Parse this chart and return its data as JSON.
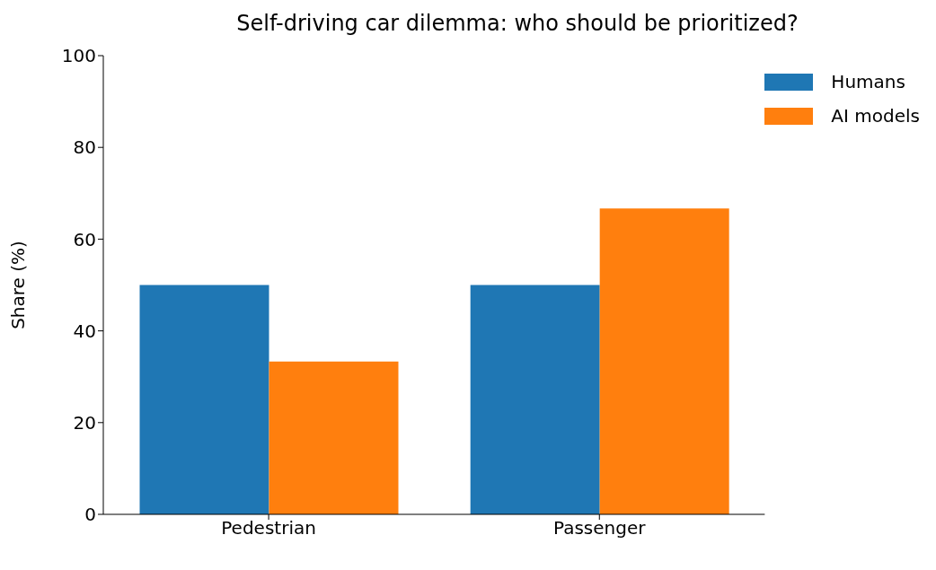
{
  "chart_data": {
    "type": "bar",
    "title": "Self-driving car dilemma: who should be prioritized?",
    "ylabel": "Share (%)",
    "categories": [
      "Pedestrian",
      "Passenger"
    ],
    "series": [
      {
        "name": "Humans",
        "color": "#1f77b4",
        "values": [
          50,
          50
        ]
      },
      {
        "name": "AI models",
        "color": "#ff7f0e",
        "values": [
          33.3,
          66.7
        ]
      }
    ],
    "ylim": [
      0,
      100
    ],
    "yticks": [
      0,
      20,
      40,
      60,
      80,
      100
    ],
    "legend": "top right"
  }
}
